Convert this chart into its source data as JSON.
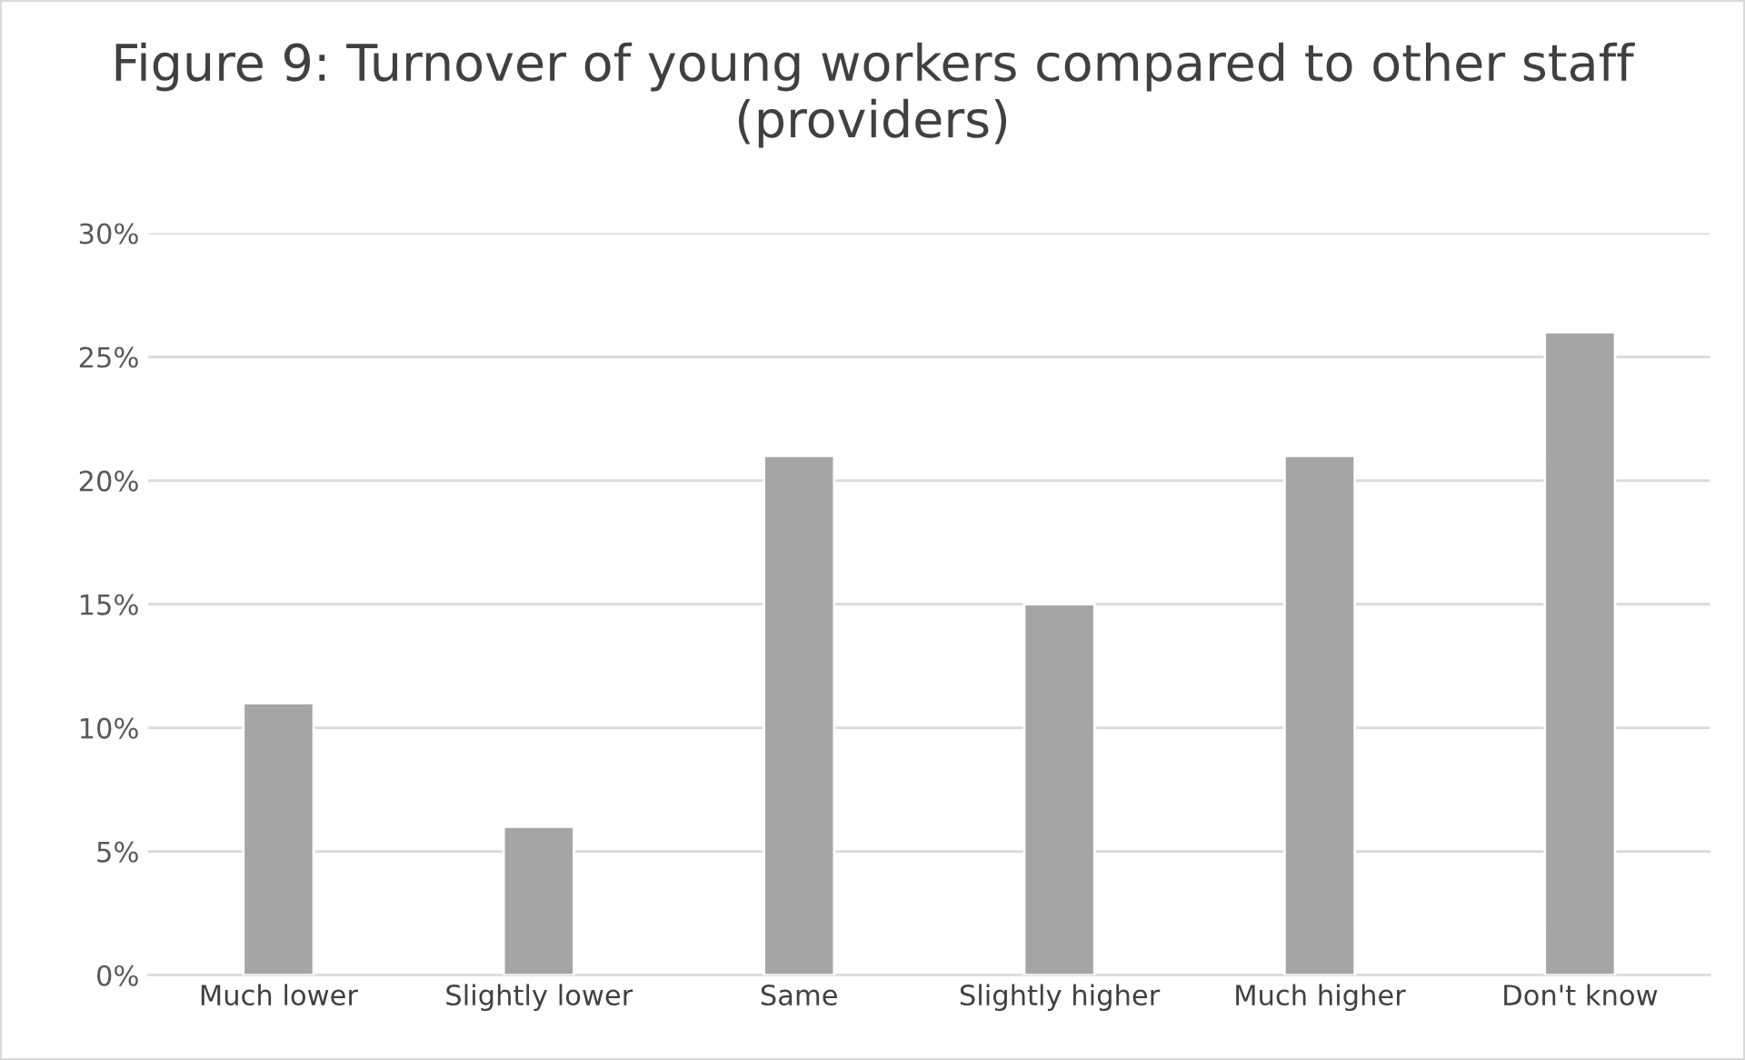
{
  "chart_data": {
    "type": "bar",
    "title": "Figure 9: Turnover of young workers compared to other staff (providers)",
    "categories": [
      "Much lower",
      "Slightly lower",
      "Same",
      "Slightly higher",
      "Much higher",
      "Don't know"
    ],
    "values": [
      11,
      6,
      21,
      15,
      21,
      26
    ],
    "color": "#a5a5a5",
    "ylim": [
      0,
      30
    ],
    "yticks": [
      {
        "value": 0,
        "label": "0%"
      },
      {
        "value": 5,
        "label": "5%"
      },
      {
        "value": 10,
        "label": "10%"
      },
      {
        "value": 15,
        "label": "15%"
      },
      {
        "value": 20,
        "label": "20%"
      },
      {
        "value": 25,
        "label": "25%"
      },
      {
        "value": 30,
        "label": "30%"
      }
    ],
    "grid": "y",
    "legend": false
  }
}
